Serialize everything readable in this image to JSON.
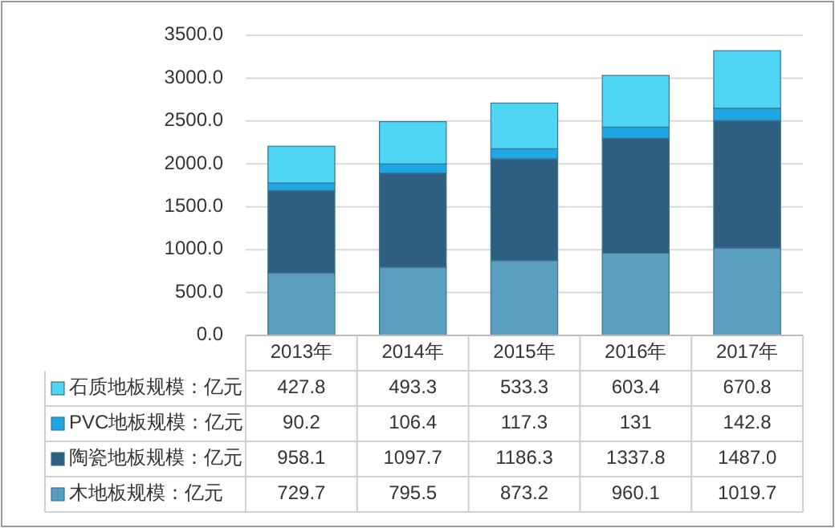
{
  "chart_data": {
    "type": "bar",
    "stacked": true,
    "categories": [
      "2013年",
      "2014年",
      "2015年",
      "2016年",
      "2017年"
    ],
    "series": [
      {
        "name": "木地板规模：亿元",
        "color": "#5b9fc0",
        "values": [
          729.7,
          795.5,
          873.2,
          960.1,
          1019.7
        ],
        "value_labels": [
          "729.7",
          "795.5",
          "873.2",
          "960.1",
          "1019.7"
        ]
      },
      {
        "name": "陶瓷地板规模：亿元",
        "color": "#2f5f80",
        "values": [
          958.1,
          1097.7,
          1186.3,
          1337.8,
          1487.0
        ],
        "value_labels": [
          "958.1",
          "1097.7",
          "1186.3",
          "1337.8",
          "1487.0"
        ]
      },
      {
        "name": "PVC地板规模：亿元",
        "color": "#1ea7e4",
        "values": [
          90.2,
          106.4,
          117.3,
          131,
          142.8
        ],
        "value_labels": [
          "90.2",
          "106.4",
          "117.3",
          "131",
          "142.8"
        ]
      },
      {
        "name": "石质地板规模：亿元",
        "color": "#4dd5f2",
        "values": [
          427.8,
          493.3,
          533.3,
          603.4,
          670.8
        ],
        "value_labels": [
          "427.8",
          "493.3",
          "533.3",
          "603.4",
          "670.8"
        ]
      }
    ],
    "ylim": [
      0,
      3500
    ],
    "yticks": [
      {
        "value": 0,
        "label": "0.0"
      },
      {
        "value": 500,
        "label": "500.0"
      },
      {
        "value": 1000,
        "label": "1000.0"
      },
      {
        "value": 1500,
        "label": "1500.0"
      },
      {
        "value": 2000,
        "label": "2000.0"
      },
      {
        "value": 2500,
        "label": "2500.0"
      },
      {
        "value": 3000,
        "label": "3000.0"
      },
      {
        "value": 3500,
        "label": "3500.0"
      }
    ],
    "grid": "y",
    "legend": "bottom"
  }
}
